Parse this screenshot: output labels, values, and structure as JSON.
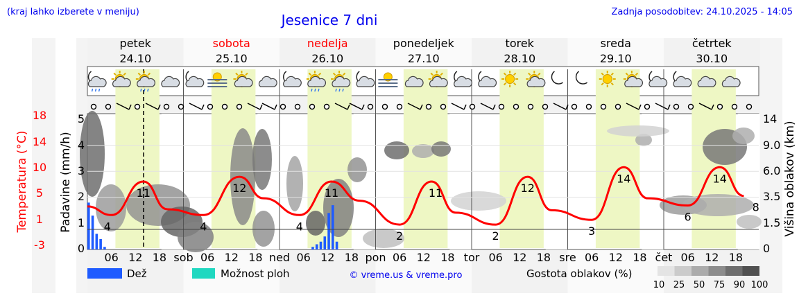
{
  "header": {
    "left_note": "(kraj lahko izberete v meniju)",
    "title": "Jesenice 7 dni",
    "updated": "Zadnja posodobitev: 24.10.2025 - 14:05"
  },
  "days": [
    {
      "name": "petek",
      "date": "24.10",
      "weekend": false
    },
    {
      "name": "sobota",
      "date": "25.10",
      "weekend": true
    },
    {
      "name": "nedelja",
      "date": "26.10",
      "weekend": true
    },
    {
      "name": "ponedeljek",
      "date": "27.10",
      "weekend": false
    },
    {
      "name": "torek",
      "date": "28.10",
      "weekend": false
    },
    {
      "name": "sreda",
      "date": "29.10",
      "weekend": false
    },
    {
      "name": "četrtek",
      "date": "30.10",
      "weekend": false
    }
  ],
  "axes": {
    "left_outer_label": "Temperatura (°C)",
    "left_outer_ticks": [
      "18",
      "14",
      "10",
      "5",
      "1",
      "-3"
    ],
    "left_inner_label": "Padavine (mm/h)",
    "left_inner_ticks": [
      "5",
      "4",
      "3",
      "2",
      "1",
      "0"
    ],
    "right_label": "Višina oblakov (km)",
    "right_ticks": [
      "14",
      "9.0",
      "6.0",
      "3.5",
      "1.5",
      "0"
    ],
    "x_ticks": [
      "06",
      "12",
      "18",
      "sob",
      "06",
      "12",
      "18",
      "ned",
      "06",
      "12",
      "18",
      "pon",
      "06",
      "12",
      "18",
      "tor",
      "06",
      "12",
      "18",
      "sre",
      "06",
      "12",
      "18",
      "čet",
      "06",
      "12",
      "18"
    ]
  },
  "legend": {
    "rain": "Dež",
    "storm": "Možnost ploh",
    "credit": "© vreme.us & vreme.pro",
    "density_title": "Gostota oblakov (%)",
    "density_levels": [
      "10",
      "25",
      "50",
      "75",
      "90",
      "100"
    ]
  },
  "colors": {
    "temperature": "#ff0000",
    "rain": "#1e5bff",
    "storm": "#20d8c0",
    "daylight": "#eef7c4",
    "title": "#0000ee",
    "weekend": "#ff0000"
  },
  "icons": [
    "moon-cloud-rain",
    "sun-cloud",
    "sun-cloud-rain",
    "cloud",
    "moon-cloud",
    "fog",
    "sun-cloud",
    "cloud",
    "moon-cloud",
    "sun-cloud-rain",
    "sun-cloud-rain",
    "moon-cloud",
    "fog",
    "cloud",
    "sun-cloud",
    "moon-cloud",
    "moon-cloud",
    "sun",
    "sun-cloud",
    "moon",
    "moon",
    "sun",
    "sun-cloud",
    "moon-cloud",
    "moon-cloud",
    "cloud",
    "cloud"
  ],
  "chart_data": [
    {
      "type": "line",
      "series": [
        {
          "name": "Temperatura (°C)",
          "unit": "°C"
        }
      ],
      "x": [
        "24.10 00",
        "24.10 06",
        "24.10 14",
        "24.10 20",
        "25.10 05",
        "25.10 14",
        "25.10 20",
        "26.10 05",
        "26.10 13",
        "26.10 20",
        "27.10 06",
        "27.10 14",
        "27.10 20",
        "28.10 06",
        "28.10 14",
        "28.10 20",
        "29.10 06",
        "29.10 14",
        "29.10 20",
        "30.10 06",
        "30.10 14",
        "30.10 20"
      ],
      "values": [
        5.8,
        4,
        11,
        5.2,
        4,
        12,
        7.5,
        4,
        11,
        7,
        2,
        11,
        4.5,
        2,
        12,
        5,
        3,
        14,
        7.5,
        6,
        14,
        8
      ],
      "labels": [
        {
          "x": "24.10 05",
          "text": "4"
        },
        {
          "x": "24.10 14",
          "text": "11"
        },
        {
          "x": "25.10 05",
          "text": "4"
        },
        {
          "x": "25.10 14",
          "text": "12"
        },
        {
          "x": "26.10 05",
          "text": "4"
        },
        {
          "x": "26.10 13",
          "text": "11"
        },
        {
          "x": "27.10 06",
          "text": "2"
        },
        {
          "x": "27.10 15",
          "text": "11"
        },
        {
          "x": "28.10 06",
          "text": "2"
        },
        {
          "x": "28.10 14",
          "text": "12"
        },
        {
          "x": "29.10 06",
          "text": "3"
        },
        {
          "x": "29.10 14",
          "text": "14"
        },
        {
          "x": "30.10 06",
          "text": "6"
        },
        {
          "x": "30.10 14",
          "text": "14"
        },
        {
          "x": "30.10 23",
          "text": "8"
        }
      ],
      "ylim": [
        -3,
        18
      ]
    },
    {
      "type": "bar",
      "series": [
        {
          "name": "Dež",
          "unit": "mm/h"
        }
      ],
      "categories": [
        "24.10 00",
        "24.10 01",
        "24.10 02",
        "24.10 03",
        "24.10 04",
        "26.10 08",
        "26.10 09",
        "26.10 10",
        "26.10 11",
        "26.10 12",
        "26.10 13",
        "26.10 14"
      ],
      "values": [
        1.8,
        1.3,
        0.6,
        0.4,
        0.1,
        0.1,
        0.2,
        0.3,
        0.5,
        1.4,
        1.7,
        0.3
      ],
      "ylim": [
        0,
        5
      ]
    }
  ]
}
